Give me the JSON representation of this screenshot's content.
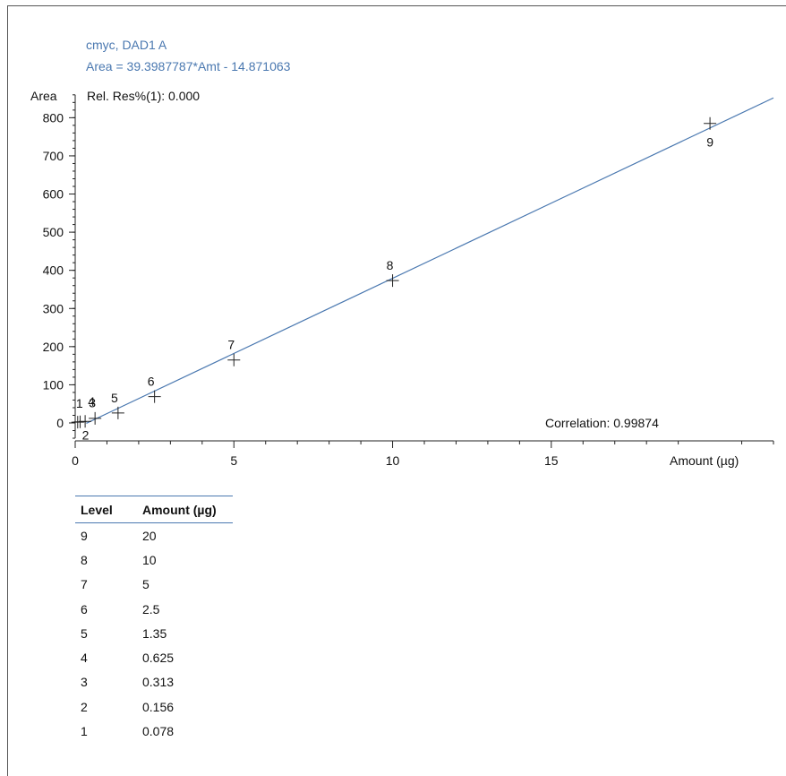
{
  "chart_data": {
    "type": "scatter",
    "title": "cmyc, DAD1 A",
    "subtitle": "Area = 39.3987787*Amt - 14.871063",
    "ylabel": "Area",
    "xlabel": "Amount (µg)",
    "annotation_res": "Rel. Res%(1): 0.000",
    "annotation_corr": "Correlation: 0.99874",
    "xlim": [
      0,
      22
    ],
    "ylim": [
      -40,
      860
    ],
    "x_ticks": [
      0,
      5,
      10,
      15
    ],
    "y_ticks": [
      0,
      100,
      200,
      300,
      400,
      500,
      600,
      700,
      800
    ],
    "fit": {
      "slope": 39.3987787,
      "intercept": -14.871063,
      "x_range": [
        0.35,
        22
      ]
    },
    "points": [
      {
        "label": "1",
        "x": 0.078,
        "y": 2
      },
      {
        "label": "2",
        "x": 0.156,
        "y": 3
      },
      {
        "label": "3",
        "x": 0.313,
        "y": 4
      },
      {
        "label": "4",
        "x": 0.625,
        "y": 12
      },
      {
        "label": "5",
        "x": 1.35,
        "y": 26
      },
      {
        "label": "6",
        "x": 2.5,
        "y": 69
      },
      {
        "label": "7",
        "x": 5,
        "y": 165
      },
      {
        "label": "8",
        "x": 10,
        "y": 373
      },
      {
        "label": "9",
        "x": 20,
        "y": 785
      }
    ],
    "grid": false,
    "line_color": "#4a78b0",
    "text_color": "#4a78b0"
  },
  "table": {
    "headers": [
      "Level",
      "Amount (µg)"
    ],
    "rows": [
      [
        "9",
        "20"
      ],
      [
        "8",
        "10"
      ],
      [
        "7",
        "5"
      ],
      [
        "6",
        "2.5"
      ],
      [
        "5",
        "1.35"
      ],
      [
        "4",
        "0.625"
      ],
      [
        "3",
        "0.313"
      ],
      [
        "2",
        "0.156"
      ],
      [
        "1",
        "0.078"
      ]
    ]
  }
}
